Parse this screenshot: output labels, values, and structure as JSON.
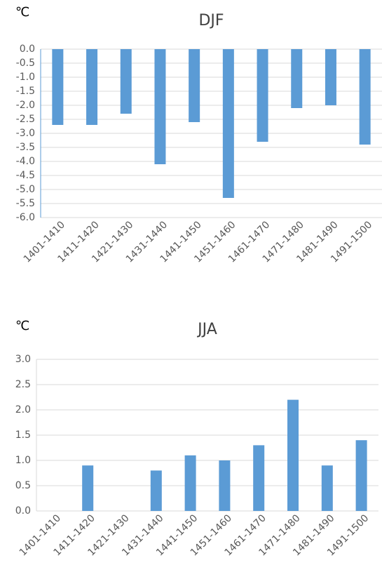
{
  "chart_data": [
    {
      "type": "bar",
      "title": "DJF",
      "y_unit": "℃",
      "categories": [
        "1401-1410",
        "1411-1420",
        "1421-1430",
        "1431-1440",
        "1441-1450",
        "1451-1460",
        "1461-1470",
        "1471-1480",
        "1481-1490",
        "1491-1500"
      ],
      "values": [
        -2.7,
        -2.7,
        -2.3,
        -4.1,
        -2.6,
        -5.3,
        -3.3,
        -2.1,
        -2.0,
        -3.4
      ],
      "color": "#5b9bd5",
      "ylim": [
        -6,
        0
      ],
      "yticks": [
        {
          "value": 0,
          "label": "0.0"
        },
        {
          "value": -0.5,
          "label": "-0.5"
        },
        {
          "value": -1,
          "label": "-1.0"
        },
        {
          "value": -1.5,
          "label": "-1.5"
        },
        {
          "value": -2,
          "label": "-2.0"
        },
        {
          "value": -2.5,
          "label": "-2.5"
        },
        {
          "value": -3,
          "label": "-3.0"
        },
        {
          "value": -3.5,
          "label": "-3.5"
        },
        {
          "value": -4,
          "label": "-4.0"
        },
        {
          "value": -4.5,
          "label": "-4.5"
        },
        {
          "value": -5,
          "label": "-5.0"
        },
        {
          "value": -5.5,
          "label": "-5.5"
        },
        {
          "value": -6,
          "label": "-6.0"
        }
      ],
      "grid": true
    },
    {
      "type": "bar",
      "title": "JJA",
      "y_unit": "℃",
      "categories": [
        "1401-1410",
        "1411-1420",
        "1421-1430",
        "1431-1440",
        "1441-1450",
        "1451-1460",
        "1461-1470",
        "1471-1480",
        "1481-1490",
        "1491-1500"
      ],
      "values": [
        0,
        0.9,
        0,
        0.8,
        1.1,
        1.0,
        1.3,
        2.2,
        0.9,
        1.4
      ],
      "color": "#5b9bd5",
      "ylim": [
        0,
        3
      ],
      "yticks": [
        {
          "value": 0,
          "label": "0.0"
        },
        {
          "value": 0.5,
          "label": "0.5"
        },
        {
          "value": 1,
          "label": "1.0"
        },
        {
          "value": 1.5,
          "label": "1.5"
        },
        {
          "value": 2,
          "label": "2.0"
        },
        {
          "value": 2.5,
          "label": "2.5"
        },
        {
          "value": 3,
          "label": "3.0"
        }
      ],
      "grid": true
    }
  ]
}
